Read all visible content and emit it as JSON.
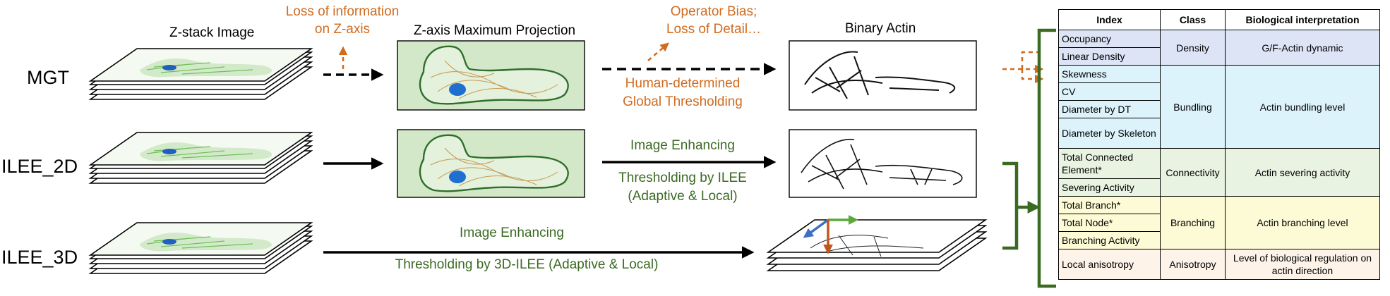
{
  "columns": {
    "zstack": "Z-stack Image",
    "projection": "Z-axis Maximum Projection",
    "binary": "Binary Actin"
  },
  "rows": {
    "mgt": "MGT",
    "ilee2d": "ILEE_2D",
    "ilee3d": "ILEE_3D"
  },
  "annotations": {
    "loss_info_1": "Loss of information",
    "loss_info_2": "on Z-axis",
    "operator_bias_1": "Operator Bias;",
    "operator_bias_2": "Loss of Detail…",
    "human_thresh_1": "Human-determined",
    "human_thresh_2": "Global Thresholding",
    "enh_2d": "Image Enhancing",
    "thresh_2d_1": "Thresholding by ILEE",
    "thresh_2d_2": "(Adaptive & Local)",
    "enh_3d": "Image Enhancing",
    "thresh_3d": "Thresholding by 3D-ILEE (Adaptive & Local)"
  },
  "table": {
    "headers": [
      "Index",
      "Class",
      "Biological interpretation"
    ],
    "groups": [
      {
        "class": "Density",
        "bio": "G/F-Actin dynamic",
        "indices": [
          "Occupancy",
          "Linear Density"
        ]
      },
      {
        "class": "Bundling",
        "bio": "Actin bundling level",
        "indices": [
          "Skewness",
          "CV",
          "Diameter by DT",
          "Diameter by Skeleton"
        ]
      },
      {
        "class": "Connectivity",
        "bio": "Actin severing activity",
        "indices": [
          "Total Connected Element*",
          "Severing Activity"
        ]
      },
      {
        "class": "Branching",
        "bio": "Actin branching level",
        "indices": [
          "Total Branch*",
          "Total Node*",
          "Branching Activity"
        ]
      },
      {
        "class": "Anisotropy",
        "bio": "Level of biological regulation on actin direction",
        "indices": [
          "Local anisotropy"
        ]
      }
    ]
  },
  "colors": {
    "orange": "#d06b1f",
    "green": "#3b6a23",
    "density": "#dde4f6",
    "bundling": "#ddf3fb",
    "connectivity": "#e8f3e1",
    "branching": "#fcfbd6",
    "anisotropy": "#fdf3e8",
    "cell_fill": "#d3e8c9",
    "cell_outline": "#2f6e2b"
  }
}
